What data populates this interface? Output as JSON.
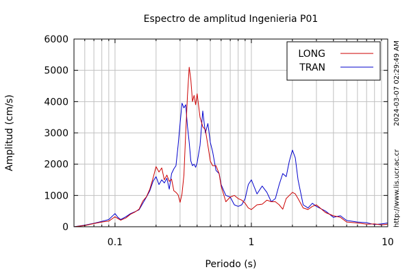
{
  "chart_data": {
    "type": "line",
    "title": "Espectro de amplitud Ingenieria P01",
    "xlabel": "Periodo (s)",
    "ylabel": "Amplitud (cm/s)",
    "xscale": "log",
    "xlim": [
      0.05,
      10
    ],
    "ylim": [
      0,
      6000
    ],
    "yticks": [
      0,
      1000,
      2000,
      3000,
      4000,
      5000,
      6000
    ],
    "xtick_labels": [
      {
        "value": 0.1,
        "label": "0.1"
      },
      {
        "value": 1,
        "label": "1"
      },
      {
        "value": 10,
        "label": "10"
      }
    ],
    "grid": true,
    "legend_position": "top-right",
    "series": [
      {
        "name": "LONG",
        "color": "#cc0000",
        "points": [
          [
            0.05,
            0
          ],
          [
            0.06,
            40
          ],
          [
            0.07,
            100
          ],
          [
            0.08,
            150
          ],
          [
            0.09,
            180
          ],
          [
            0.1,
            320
          ],
          [
            0.105,
            260
          ],
          [
            0.11,
            210
          ],
          [
            0.12,
            280
          ],
          [
            0.13,
            400
          ],
          [
            0.14,
            470
          ],
          [
            0.15,
            560
          ],
          [
            0.16,
            820
          ],
          [
            0.17,
            960
          ],
          [
            0.18,
            1200
          ],
          [
            0.19,
            1550
          ],
          [
            0.2,
            1920
          ],
          [
            0.21,
            1750
          ],
          [
            0.22,
            1880
          ],
          [
            0.23,
            1500
          ],
          [
            0.24,
            1650
          ],
          [
            0.25,
            1450
          ],
          [
            0.26,
            1520
          ],
          [
            0.27,
            1150
          ],
          [
            0.28,
            1100
          ],
          [
            0.29,
            1020
          ],
          [
            0.3,
            780
          ],
          [
            0.31,
            1050
          ],
          [
            0.32,
            1650
          ],
          [
            0.33,
            3000
          ],
          [
            0.34,
            4200
          ],
          [
            0.35,
            5100
          ],
          [
            0.36,
            4700
          ],
          [
            0.37,
            4000
          ],
          [
            0.38,
            4200
          ],
          [
            0.39,
            3900
          ],
          [
            0.4,
            4250
          ],
          [
            0.42,
            3500
          ],
          [
            0.44,
            3200
          ],
          [
            0.46,
            3100
          ],
          [
            0.48,
            2600
          ],
          [
            0.5,
            2100
          ],
          [
            0.52,
            1950
          ],
          [
            0.55,
            1950
          ],
          [
            0.58,
            1700
          ],
          [
            0.6,
            1300
          ],
          [
            0.65,
            800
          ],
          [
            0.7,
            950
          ],
          [
            0.75,
            1000
          ],
          [
            0.8,
            900
          ],
          [
            0.85,
            850
          ],
          [
            0.9,
            750
          ],
          [
            0.95,
            600
          ],
          [
            1.0,
            550
          ],
          [
            1.1,
            700
          ],
          [
            1.2,
            720
          ],
          [
            1.3,
            850
          ],
          [
            1.4,
            800
          ],
          [
            1.5,
            800
          ],
          [
            1.6,
            700
          ],
          [
            1.7,
            560
          ],
          [
            1.8,
            900
          ],
          [
            1.9,
            1000
          ],
          [
            2.0,
            1100
          ],
          [
            2.1,
            1050
          ],
          [
            2.2,
            900
          ],
          [
            2.4,
            600
          ],
          [
            2.6,
            550
          ],
          [
            2.8,
            650
          ],
          [
            3.0,
            700
          ],
          [
            3.5,
            450
          ],
          [
            4.0,
            350
          ],
          [
            4.5,
            300
          ],
          [
            5.0,
            150
          ],
          [
            6.0,
            120
          ],
          [
            7.0,
            80
          ],
          [
            8.0,
            90
          ],
          [
            9.0,
            60
          ],
          [
            10.0,
            80
          ]
        ]
      },
      {
        "name": "TRAN",
        "color": "#0000cc",
        "points": [
          [
            0.05,
            0
          ],
          [
            0.06,
            50
          ],
          [
            0.07,
            110
          ],
          [
            0.08,
            170
          ],
          [
            0.09,
            230
          ],
          [
            0.1,
            420
          ],
          [
            0.105,
            300
          ],
          [
            0.11,
            230
          ],
          [
            0.12,
            320
          ],
          [
            0.13,
            420
          ],
          [
            0.14,
            480
          ],
          [
            0.15,
            540
          ],
          [
            0.16,
            750
          ],
          [
            0.17,
            950
          ],
          [
            0.18,
            1150
          ],
          [
            0.19,
            1450
          ],
          [
            0.2,
            1600
          ],
          [
            0.21,
            1350
          ],
          [
            0.22,
            1500
          ],
          [
            0.23,
            1400
          ],
          [
            0.24,
            1550
          ],
          [
            0.25,
            1200
          ],
          [
            0.26,
            1700
          ],
          [
            0.27,
            1850
          ],
          [
            0.28,
            1950
          ],
          [
            0.29,
            2600
          ],
          [
            0.3,
            3300
          ],
          [
            0.31,
            3950
          ],
          [
            0.32,
            3800
          ],
          [
            0.33,
            3900
          ],
          [
            0.34,
            3200
          ],
          [
            0.35,
            2700
          ],
          [
            0.36,
            2100
          ],
          [
            0.37,
            1950
          ],
          [
            0.38,
            2000
          ],
          [
            0.39,
            1900
          ],
          [
            0.4,
            2050
          ],
          [
            0.42,
            2600
          ],
          [
            0.44,
            3700
          ],
          [
            0.46,
            3000
          ],
          [
            0.48,
            3300
          ],
          [
            0.5,
            2700
          ],
          [
            0.52,
            2400
          ],
          [
            0.55,
            1800
          ],
          [
            0.58,
            1700
          ],
          [
            0.6,
            1350
          ],
          [
            0.65,
            1000
          ],
          [
            0.7,
            950
          ],
          [
            0.75,
            700
          ],
          [
            0.8,
            650
          ],
          [
            0.85,
            700
          ],
          [
            0.9,
            900
          ],
          [
            0.95,
            1350
          ],
          [
            1.0,
            1500
          ],
          [
            1.1,
            1050
          ],
          [
            1.2,
            1300
          ],
          [
            1.3,
            1100
          ],
          [
            1.4,
            800
          ],
          [
            1.5,
            900
          ],
          [
            1.6,
            1350
          ],
          [
            1.7,
            1700
          ],
          [
            1.8,
            1600
          ],
          [
            1.9,
            2100
          ],
          [
            2.0,
            2450
          ],
          [
            2.1,
            2200
          ],
          [
            2.2,
            1500
          ],
          [
            2.4,
            700
          ],
          [
            2.6,
            600
          ],
          [
            2.8,
            750
          ],
          [
            3.0,
            650
          ],
          [
            3.5,
            500
          ],
          [
            4.0,
            300
          ],
          [
            4.5,
            350
          ],
          [
            5.0,
            200
          ],
          [
            6.0,
            150
          ],
          [
            7.0,
            130
          ],
          [
            8.0,
            70
          ],
          [
            9.0,
            90
          ],
          [
            10.0,
            120
          ]
        ]
      }
    ]
  },
  "side_text": {
    "timestamp": "2024-03-07 02:29:49 AM",
    "website": "http://www.lis.ucr.ac.cr"
  }
}
